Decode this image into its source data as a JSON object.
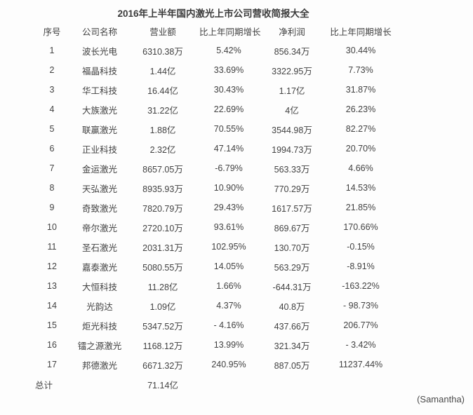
{
  "colors": {
    "background": "#fdfdfd",
    "text": "#424242",
    "title_text": "#3b3b3b"
  },
  "signature": "(Samantha)",
  "chart_data": {
    "type": "table",
    "title": "2016年上半年国内激光上市公司营收简报大全",
    "columns": [
      "序号",
      "公司名称",
      "营业额",
      "比上年同期增长",
      "净利润",
      "比上年同期增长"
    ],
    "rows": [
      [
        "1",
        "波长光电",
        "6310.38万",
        "5.42%",
        "856.34万",
        "30.44%"
      ],
      [
        "2",
        "福晶科技",
        "1.44亿",
        "33.69%",
        "3322.95万",
        "7.73%"
      ],
      [
        "3",
        "华工科技",
        "16.44亿",
        "30.43%",
        "1.17亿",
        "31.87%"
      ],
      [
        "4",
        "大族激光",
        "31.22亿",
        "22.69%",
        "4亿",
        "26.23%"
      ],
      [
        "5",
        "联赢激光",
        "1.88亿",
        "70.55%",
        "3544.98万",
        "82.27%"
      ],
      [
        "6",
        "正业科技",
        "2.32亿",
        "47.14%",
        "1994.73万",
        "20.70%"
      ],
      [
        "7",
        "金运激光",
        "8657.05万",
        "-6.79%",
        "563.33万",
        "4.66%"
      ],
      [
        "8",
        "天弘激光",
        "8935.93万",
        "10.90%",
        "770.29万",
        "14.53%"
      ],
      [
        "9",
        "奇致激光",
        "7820.79万",
        "29.43%",
        "1617.57万",
        "21.85%"
      ],
      [
        "10",
        "帝尔激光",
        "2720.10万",
        "93.61%",
        "869.67万",
        "170.66%"
      ],
      [
        "11",
        "圣石激光",
        "2031.31万",
        "102.95%",
        "130.70万",
        "-0.15%"
      ],
      [
        "12",
        "嘉泰激光",
        "5080.55万",
        "14.05%",
        "563.29万",
        "-8.91%"
      ],
      [
        "13",
        "大恒科技",
        "11.28亿",
        "1.66%",
        "-644.31万",
        "-163.22%"
      ],
      [
        "14",
        "光韵达",
        "1.09亿",
        "4.37%",
        "40.8万",
        "- 98.73%"
      ],
      [
        "15",
        "炬光科技",
        "5347.52万",
        "- 4.16%",
        "437.66万",
        "206.77%"
      ],
      [
        "16",
        "镭之源激光",
        "1168.12万",
        "13.99%",
        "321.34万",
        "- 3.42%"
      ],
      [
        "17",
        "邦德激光",
        "6671.32万",
        "240.95%",
        "887.05万",
        "11237.44%"
      ],
      [
        "总计",
        "",
        "71.14亿",
        "",
        "",
        ""
      ]
    ]
  }
}
